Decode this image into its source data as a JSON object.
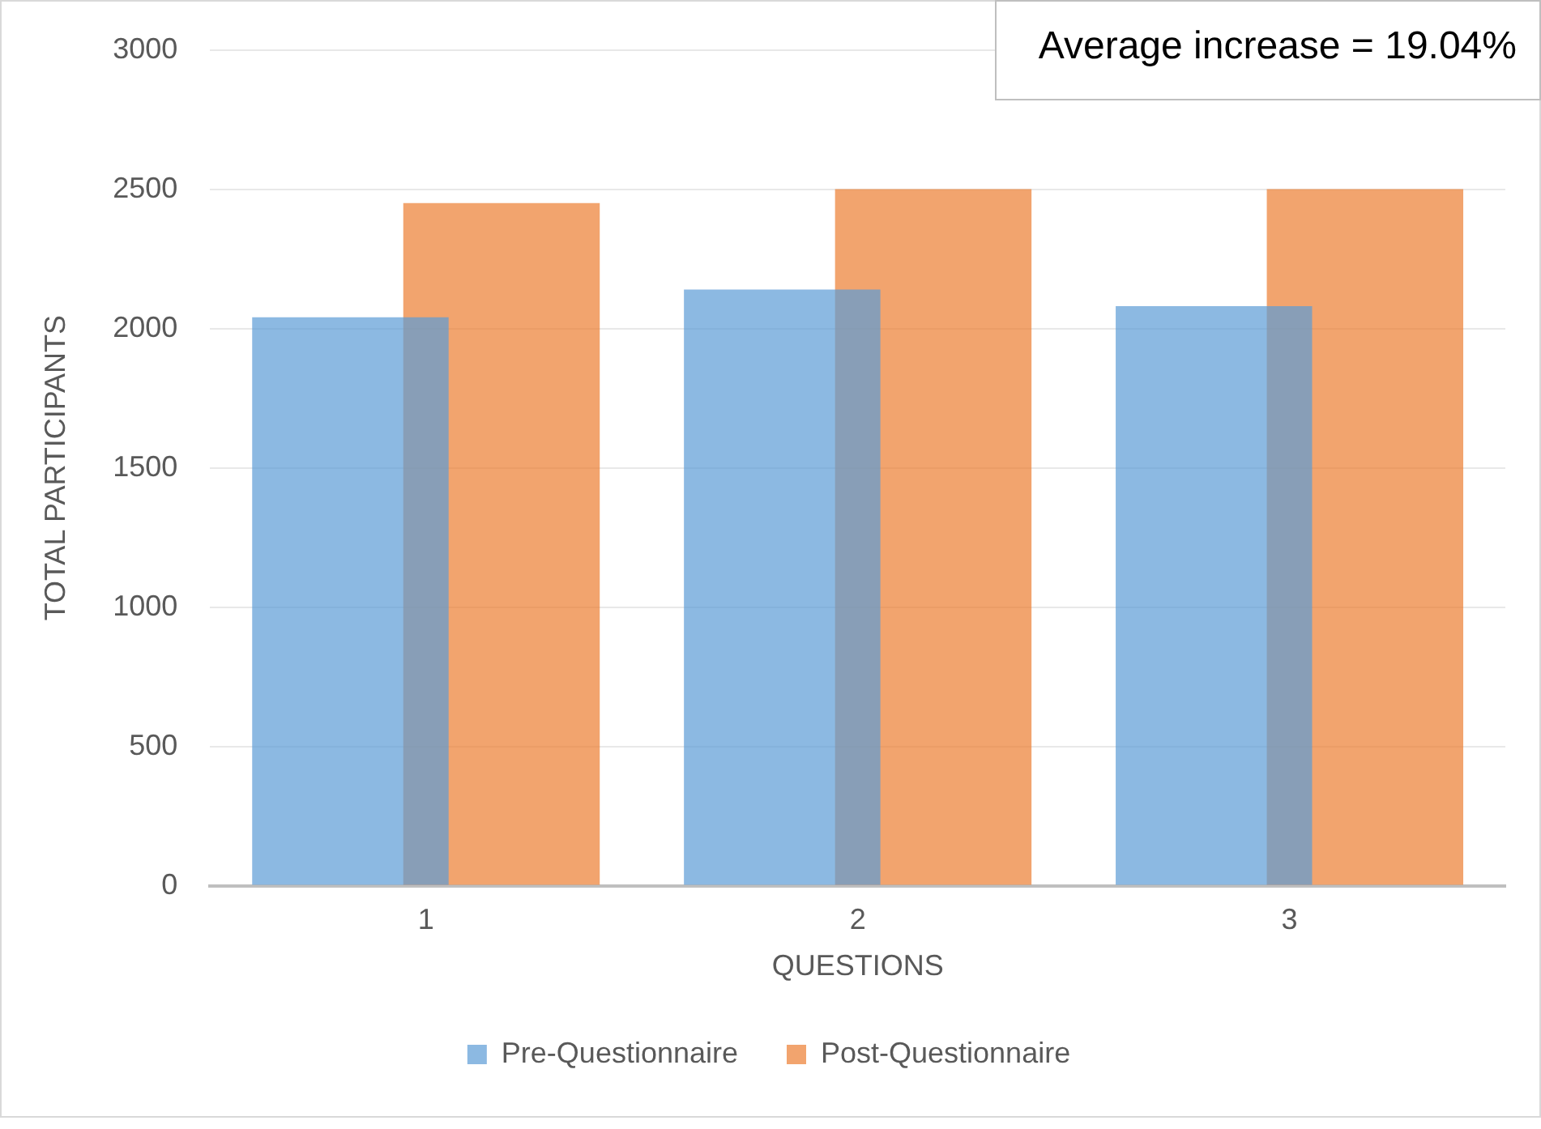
{
  "chart_data": {
    "type": "bar",
    "xlabel": "QUESTIONS",
    "ylabel": "TOTAL PARTICIPANTS",
    "categories": [
      "1",
      "2",
      "3"
    ],
    "series": [
      {
        "name": "Pre-Questionnaire",
        "color": "#5b9bd5",
        "values": [
          2040,
          2140,
          2080
        ]
      },
      {
        "name": "Post-Questionnaire",
        "color": "#ed7d31",
        "values": [
          2450,
          2500,
          2500
        ]
      }
    ],
    "ylim": [
      0,
      3000
    ],
    "yticks": [
      0,
      500,
      1000,
      1500,
      2000,
      2500,
      3000
    ],
    "grid": "y",
    "legend": "bottom",
    "annotations": [
      "Average increase = 19.04%"
    ]
  }
}
